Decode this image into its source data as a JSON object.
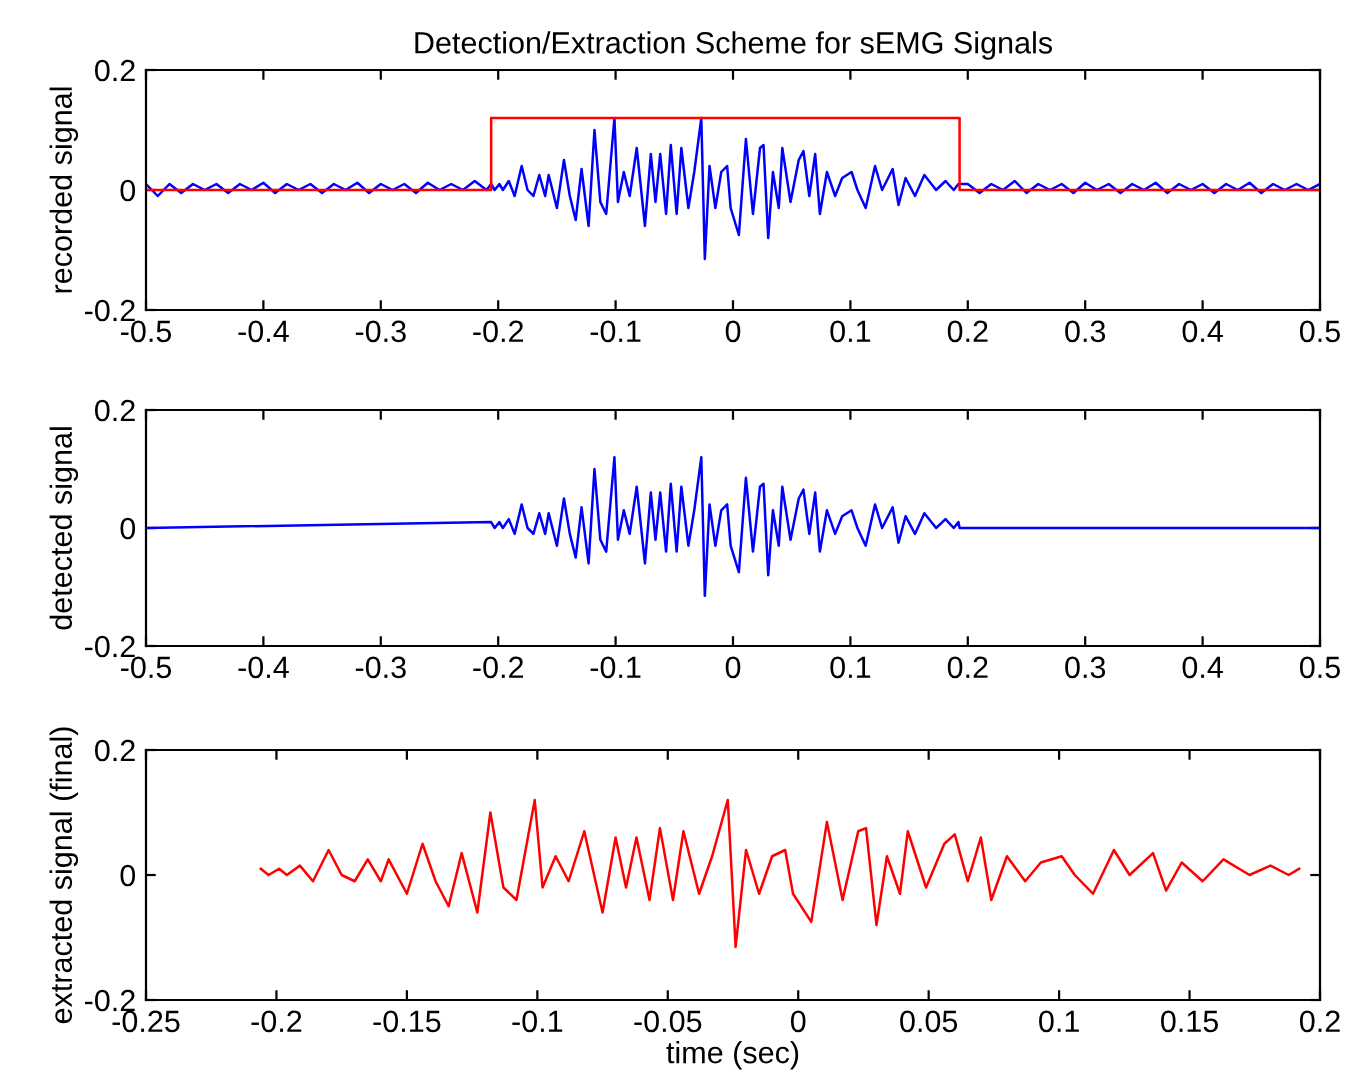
{
  "chart_data": [
    {
      "type": "line",
      "title": "Detection/Extraction Scheme for sEMG Signals",
      "ylabel": "recorded signal",
      "xlim": [
        -0.5,
        0.5
      ],
      "ylim": [
        -0.2,
        0.2
      ],
      "xticks": [
        -0.5,
        -0.4,
        -0.3,
        -0.2,
        -0.1,
        0,
        0.1,
        0.2,
        0.3,
        0.4,
        0.5
      ],
      "yticks": [
        -0.2,
        0,
        0.2
      ],
      "grid": false,
      "legend": false,
      "series": [
        {
          "color": "#0000ff",
          "x": [
            -0.5,
            -0.49,
            -0.48,
            -0.47,
            -0.46,
            -0.45,
            -0.44,
            -0.43,
            -0.42,
            -0.41,
            -0.4,
            -0.39,
            -0.38,
            -0.37,
            -0.36,
            -0.35,
            -0.34,
            -0.33,
            -0.32,
            -0.31,
            -0.3,
            -0.29,
            -0.28,
            -0.27,
            -0.26,
            -0.25,
            -0.24,
            -0.23,
            -0.22,
            -0.21,
            -0.206,
            -0.203,
            -0.199,
            -0.196,
            -0.191,
            -0.186,
            -0.18,
            -0.175,
            -0.17,
            -0.165,
            -0.16,
            -0.157,
            -0.15,
            -0.144,
            -0.139,
            -0.134,
            -0.129,
            -0.123,
            -0.118,
            -0.113,
            -0.108,
            -0.101,
            -0.098,
            -0.093,
            -0.088,
            -0.082,
            -0.075,
            -0.07,
            -0.066,
            -0.062,
            -0.057,
            -0.053,
            -0.048,
            -0.044,
            -0.038,
            -0.033,
            -0.027,
            -0.024,
            -0.02,
            -0.015,
            -0.01,
            -0.005,
            -0.002,
            0.005,
            0.011,
            0.017,
            0.023,
            0.026,
            0.03,
            0.034,
            0.039,
            0.042,
            0.049,
            0.056,
            0.06,
            0.065,
            0.07,
            0.074,
            0.08,
            0.087,
            0.093,
            0.101,
            0.106,
            0.113,
            0.121,
            0.127,
            0.136,
            0.141,
            0.147,
            0.155,
            0.163,
            0.173,
            0.181,
            0.188,
            0.192,
            0.2,
            0.21,
            0.22,
            0.23,
            0.24,
            0.25,
            0.26,
            0.27,
            0.28,
            0.29,
            0.3,
            0.31,
            0.32,
            0.33,
            0.34,
            0.35,
            0.36,
            0.37,
            0.38,
            0.39,
            0.4,
            0.41,
            0.42,
            0.43,
            0.44,
            0.45,
            0.46,
            0.47,
            0.48,
            0.49,
            0.5
          ],
          "values": [
            0.01,
            -0.01,
            0.01,
            -0.005,
            0.01,
            0.0,
            0.01,
            -0.005,
            0.01,
            0.0,
            0.012,
            -0.005,
            0.01,
            0.0,
            0.01,
            -0.005,
            0.01,
            0.0,
            0.012,
            -0.005,
            0.01,
            0.0,
            0.01,
            -0.005,
            0.012,
            0.0,
            0.01,
            0.0,
            0.015,
            0.0,
            0.01,
            0.0,
            0.01,
            0.0,
            0.015,
            -0.01,
            0.04,
            0.0,
            -0.01,
            0.025,
            -0.01,
            0.025,
            -0.03,
            0.05,
            -0.01,
            -0.05,
            0.035,
            -0.06,
            0.1,
            -0.02,
            -0.04,
            0.12,
            -0.02,
            0.03,
            -0.01,
            0.07,
            -0.06,
            0.06,
            -0.02,
            0.06,
            -0.04,
            0.075,
            -0.04,
            0.07,
            -0.03,
            0.03,
            0.12,
            -0.115,
            0.04,
            -0.03,
            0.03,
            0.04,
            -0.03,
            -0.075,
            0.085,
            -0.04,
            0.07,
            0.075,
            -0.08,
            0.03,
            -0.03,
            0.07,
            -0.02,
            0.05,
            0.065,
            -0.01,
            0.06,
            -0.04,
            0.03,
            -0.01,
            0.02,
            0.03,
            0.0,
            -0.03,
            0.04,
            0.0,
            0.035,
            -0.025,
            0.02,
            -0.01,
            0.025,
            0.0,
            0.015,
            0.0,
            0.01,
            0.01,
            -0.005,
            0.01,
            0.0,
            0.015,
            -0.005,
            0.01,
            0.0,
            0.01,
            -0.005,
            0.012,
            0.0,
            0.01,
            -0.005,
            0.01,
            0.0,
            0.012,
            -0.005,
            0.01,
            0.0,
            0.01,
            -0.005,
            0.01,
            0.0,
            0.012,
            -0.005,
            0.01,
            0.0,
            0.01,
            0.0,
            0.01
          ]
        },
        {
          "color": "#ff0000",
          "x": [
            -0.5,
            -0.206,
            -0.206,
            0.193,
            0.193,
            0.5
          ],
          "values": [
            0,
            0,
            0.12,
            0.12,
            0,
            0
          ]
        }
      ]
    },
    {
      "type": "line",
      "ylabel": "detected signal",
      "xlim": [
        -0.5,
        0.5
      ],
      "ylim": [
        -0.2,
        0.2
      ],
      "xticks": [
        -0.5,
        -0.4,
        -0.3,
        -0.2,
        -0.1,
        0,
        0.1,
        0.2,
        0.3,
        0.4,
        0.5
      ],
      "yticks": [
        -0.2,
        0,
        0.2
      ],
      "grid": false,
      "legend": false,
      "series": [
        {
          "color": "#0000ff",
          "x": [
            -0.5,
            -0.206,
            -0.203,
            -0.199,
            -0.196,
            -0.191,
            -0.186,
            -0.18,
            -0.175,
            -0.17,
            -0.165,
            -0.16,
            -0.157,
            -0.15,
            -0.144,
            -0.139,
            -0.134,
            -0.129,
            -0.123,
            -0.118,
            -0.113,
            -0.108,
            -0.101,
            -0.098,
            -0.093,
            -0.088,
            -0.082,
            -0.075,
            -0.07,
            -0.066,
            -0.062,
            -0.057,
            -0.053,
            -0.048,
            -0.044,
            -0.038,
            -0.033,
            -0.027,
            -0.024,
            -0.02,
            -0.015,
            -0.01,
            -0.005,
            -0.002,
            0.005,
            0.011,
            0.017,
            0.023,
            0.026,
            0.03,
            0.034,
            0.039,
            0.042,
            0.049,
            0.056,
            0.06,
            0.065,
            0.07,
            0.074,
            0.08,
            0.087,
            0.093,
            0.101,
            0.106,
            0.113,
            0.121,
            0.127,
            0.136,
            0.141,
            0.147,
            0.155,
            0.163,
            0.173,
            0.181,
            0.188,
            0.192,
            0.193,
            0.5
          ],
          "values": [
            0,
            0.01,
            0.0,
            0.01,
            0.0,
            0.015,
            -0.01,
            0.04,
            0.0,
            -0.01,
            0.025,
            -0.01,
            0.025,
            -0.03,
            0.05,
            -0.01,
            -0.05,
            0.035,
            -0.06,
            0.1,
            -0.02,
            -0.04,
            0.12,
            -0.02,
            0.03,
            -0.01,
            0.07,
            -0.06,
            0.06,
            -0.02,
            0.06,
            -0.04,
            0.075,
            -0.04,
            0.07,
            -0.03,
            0.03,
            0.12,
            -0.115,
            0.04,
            -0.03,
            0.03,
            0.04,
            -0.03,
            -0.075,
            0.085,
            -0.04,
            0.07,
            0.075,
            -0.08,
            0.03,
            -0.03,
            0.07,
            -0.02,
            0.05,
            0.065,
            -0.01,
            0.06,
            -0.04,
            0.03,
            -0.01,
            0.02,
            0.03,
            0.0,
            -0.03,
            0.04,
            0.0,
            0.035,
            -0.025,
            0.02,
            -0.01,
            0.025,
            0.0,
            0.015,
            0.0,
            0.01,
            0,
            0
          ]
        }
      ]
    },
    {
      "type": "line",
      "ylabel": "extracted signal (final)",
      "xlabel": "time (sec)",
      "xlim": [
        -0.25,
        0.2
      ],
      "ylim": [
        -0.2,
        0.2
      ],
      "xticks": [
        -0.25,
        -0.2,
        -0.15,
        -0.1,
        -0.05,
        0,
        0.05,
        0.1,
        0.15,
        0.2
      ],
      "yticks": [
        -0.2,
        0,
        0.2
      ],
      "grid": false,
      "legend": false,
      "series": [
        {
          "color": "#ff0000",
          "x": [
            -0.206,
            -0.203,
            -0.199,
            -0.196,
            -0.191,
            -0.186,
            -0.18,
            -0.175,
            -0.17,
            -0.165,
            -0.16,
            -0.157,
            -0.15,
            -0.144,
            -0.139,
            -0.134,
            -0.129,
            -0.123,
            -0.118,
            -0.113,
            -0.108,
            -0.101,
            -0.098,
            -0.093,
            -0.088,
            -0.082,
            -0.075,
            -0.07,
            -0.066,
            -0.062,
            -0.057,
            -0.053,
            -0.048,
            -0.044,
            -0.038,
            -0.033,
            -0.027,
            -0.024,
            -0.02,
            -0.015,
            -0.01,
            -0.005,
            -0.002,
            0.005,
            0.011,
            0.017,
            0.023,
            0.026,
            0.03,
            0.034,
            0.039,
            0.042,
            0.049,
            0.056,
            0.06,
            0.065,
            0.07,
            0.074,
            0.08,
            0.087,
            0.093,
            0.101,
            0.106,
            0.113,
            0.121,
            0.127,
            0.136,
            0.141,
            0.147,
            0.155,
            0.163,
            0.173,
            0.181,
            0.188,
            0.192
          ],
          "values": [
            0.01,
            0.0,
            0.01,
            0.0,
            0.015,
            -0.01,
            0.04,
            0.0,
            -0.01,
            0.025,
            -0.01,
            0.025,
            -0.03,
            0.05,
            -0.01,
            -0.05,
            0.035,
            -0.06,
            0.1,
            -0.02,
            -0.04,
            0.12,
            -0.02,
            0.03,
            -0.01,
            0.07,
            -0.06,
            0.06,
            -0.02,
            0.06,
            -0.04,
            0.075,
            -0.04,
            0.07,
            -0.03,
            0.03,
            0.12,
            -0.115,
            0.04,
            -0.03,
            0.03,
            0.04,
            -0.03,
            -0.075,
            0.085,
            -0.04,
            0.07,
            0.075,
            -0.08,
            0.03,
            -0.03,
            0.07,
            -0.02,
            0.05,
            0.065,
            -0.01,
            0.06,
            -0.04,
            0.03,
            -0.01,
            0.02,
            0.03,
            0.0,
            -0.03,
            0.04,
            0.0,
            0.035,
            -0.025,
            0.02,
            -0.01,
            0.025,
            0.0,
            0.015,
            0.0,
            0.01
          ]
        }
      ]
    }
  ]
}
